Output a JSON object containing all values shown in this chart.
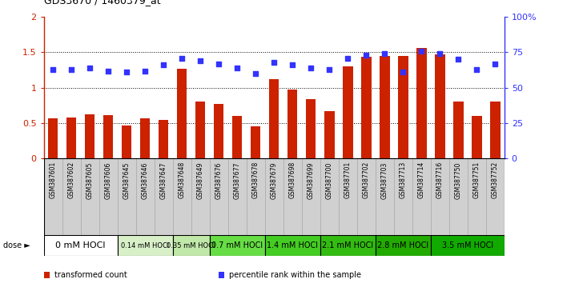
{
  "title": "GDS3670 / 1460379_at",
  "samples": [
    "GSM387601",
    "GSM387602",
    "GSM387605",
    "GSM387606",
    "GSM387645",
    "GSM387646",
    "GSM387647",
    "GSM387648",
    "GSM387649",
    "GSM387676",
    "GSM387677",
    "GSM387678",
    "GSM387679",
    "GSM387698",
    "GSM387699",
    "GSM387700",
    "GSM387701",
    "GSM387702",
    "GSM387703",
    "GSM387713",
    "GSM387714",
    "GSM387716",
    "GSM387750",
    "GSM387751",
    "GSM387752"
  ],
  "bar_values": [
    0.57,
    0.58,
    0.62,
    0.61,
    0.47,
    0.57,
    0.55,
    1.27,
    0.81,
    0.77,
    0.6,
    0.45,
    1.12,
    0.97,
    0.84,
    0.67,
    1.3,
    1.44,
    1.45,
    1.45,
    1.56,
    1.47,
    0.81,
    0.6,
    0.81
  ],
  "percentile_values": [
    63,
    63,
    64,
    62,
    61,
    62,
    66,
    71,
    69,
    67,
    64,
    60,
    68,
    66,
    64,
    63,
    71,
    73,
    74,
    61,
    76,
    74,
    70,
    63,
    67
  ],
  "dose_groups": [
    {
      "label": "0 mM HOCl",
      "start": 0,
      "end": 4,
      "color": "#ffffff"
    },
    {
      "label": "0.14 mM HOCl",
      "start": 4,
      "end": 7,
      "color": "#d8f0c8"
    },
    {
      "label": "0.35 mM HOCl",
      "start": 7,
      "end": 9,
      "color": "#c0e8a8"
    },
    {
      "label": "0.7 mM HOCl",
      "start": 9,
      "end": 12,
      "color": "#66dd44"
    },
    {
      "label": "1.4 mM HOCl",
      "start": 12,
      "end": 15,
      "color": "#44cc22"
    },
    {
      "label": "2.1 mM HOCl",
      "start": 15,
      "end": 18,
      "color": "#33bb11"
    },
    {
      "label": "2.8 mM HOCl",
      "start": 18,
      "end": 21,
      "color": "#22aa00"
    },
    {
      "label": "3.5 mM HOCl",
      "start": 21,
      "end": 25,
      "color": "#11aa00"
    }
  ],
  "dose_fontsizes": [
    8,
    6,
    6,
    7,
    7,
    7,
    7,
    7
  ],
  "bar_color": "#cc2200",
  "dot_color": "#3333ff",
  "ylim_left": [
    0,
    2
  ],
  "ylim_right": [
    0,
    100
  ],
  "yticks_left": [
    0,
    0.5,
    1.0,
    1.5,
    2.0
  ],
  "yticks_right": [
    0,
    25,
    50,
    75,
    100
  ],
  "ytick_labels_left": [
    "0",
    "0.5",
    "1",
    "1.5",
    "2"
  ],
  "ytick_labels_right": [
    "0",
    "25",
    "50",
    "75",
    "100%"
  ],
  "legend_items": [
    {
      "label": "transformed count",
      "color": "#cc2200"
    },
    {
      "label": "percentile rank within the sample",
      "color": "#3333ff"
    }
  ],
  "bg_color": "#ffffff",
  "bar_width": 0.55,
  "sample_bg_color": "#d0d0d0",
  "sample_border_color": "#aaaaaa"
}
